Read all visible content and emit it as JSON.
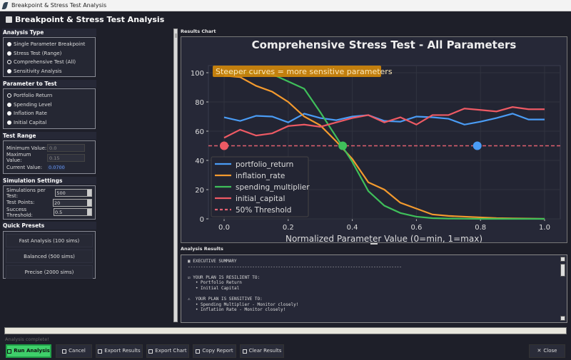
{
  "window": {
    "title": "Breakpoint & Stress Test Analysis"
  },
  "header": {
    "title": "Breakpoint & Stress Test Analysis"
  },
  "analysis_type": {
    "label": "Analysis Type",
    "options": [
      "Single Parameter Breakpoint",
      "Stress Test (Range)",
      "Comprehensive Test (All)",
      "Sensitivity Analysis"
    ],
    "selected": "Comprehensive Test (All)"
  },
  "parameter": {
    "label": "Parameter to Test",
    "options": [
      "Portfolio Return",
      "Spending Level",
      "Inflation Rate",
      "Initial Capital"
    ],
    "selected": "Portfolio Return"
  },
  "test_range": {
    "label": "Test Range",
    "min_label": "Minimum Value:",
    "min_value": "0.0",
    "max_label": "Maximum Value:",
    "max_value": "0.15",
    "current_label": "Current Value:",
    "current_value": "0.0700"
  },
  "simulation": {
    "label": "Simulation Settings",
    "sims_label": "Simulations per Test:",
    "sims_value": "500",
    "points_label": "Test Points:",
    "points_value": "20",
    "threshold_label": "Success Threshold:",
    "threshold_value": "0.5"
  },
  "presets": {
    "label": "Quick Presets",
    "items": [
      "Fast Analysis (100 sims)",
      "Balanced (500 sims)",
      "Precise (2000 sims)"
    ]
  },
  "chart_panel": {
    "label": "Results Chart"
  },
  "results_panel": {
    "label": "Analysis Results",
    "text": "▣ EXECUTIVE SUMMARY\n-----------------------------------------------------------------------------------\n\n☑ YOUR PLAN IS RESILIENT TO:\n   • Portfolio Return\n   • Initial Capital\n\n⚠  YOUR PLAN IS SENSITIVE TO:\n   • Spending Multiplier - Monitor closely!\n   • Inflation Rate - Monitor closely!"
  },
  "progress": {
    "value": 1.0
  },
  "status": "Analysis complete!",
  "buttons": {
    "run": "Run Analysis",
    "cancel": "Cancel",
    "export_results": "Export Results",
    "export_chart": "Export Chart",
    "copy_report": "Copy Report",
    "clear_results": "Clear Results",
    "close": "Close"
  },
  "colors": {
    "accent_green": "#3fcf6a",
    "background": "#1e1f29",
    "annotation": "#d4890a"
  },
  "chart_data": {
    "type": "line",
    "title": "Comprehensive Stress Test - All Parameters",
    "xlabel": "Normalized Parameter Value (0=min, 1=max)",
    "ylabel": "",
    "xlim": [
      0,
      1
    ],
    "ylim": [
      0,
      100
    ],
    "xticks": [
      "0.0",
      "0.2",
      "0.4",
      "0.6",
      "0.8",
      "1.0"
    ],
    "yticks": [
      "0",
      "20",
      "40",
      "60",
      "80",
      "100"
    ],
    "grid": true,
    "legend": "lower-left",
    "annotation": "Steeper curves = more sensitive parameters",
    "x": [
      0,
      0.05,
      0.1,
      0.15,
      0.2,
      0.25,
      0.3,
      0.35,
      0.4,
      0.45,
      0.5,
      0.55,
      0.6,
      0.65,
      0.7,
      0.75,
      0.8,
      0.85,
      0.9,
      0.95,
      1.0
    ],
    "series": [
      {
        "name": "portfolio_return",
        "color": "#4a9cf5",
        "values": [
          69.5,
          67,
          70.5,
          70,
          66,
          72,
          69,
          67.5,
          70,
          71,
          67,
          66.5,
          70,
          69.5,
          68.5,
          64.5,
          66.5,
          69,
          72,
          68,
          68
        ]
      },
      {
        "name": "inflation_rate",
        "color": "#f39a2e",
        "values": [
          98,
          97,
          91,
          87,
          80,
          70,
          64,
          53,
          41,
          25,
          20,
          11,
          7,
          3,
          2,
          1.5,
          1,
          0.5,
          0.3,
          0.2,
          0
        ]
      },
      {
        "name": "spending_multiplier",
        "color": "#3fbf5a",
        "values": [
          100,
          100,
          100,
          99,
          94,
          89,
          73,
          56,
          39,
          19,
          9,
          4,
          1.5,
          0.5,
          0.2,
          0.1,
          0,
          0,
          0,
          0,
          0
        ]
      },
      {
        "name": "initial_capital",
        "color": "#ee5a64",
        "values": [
          55.5,
          61,
          57,
          58.5,
          63.5,
          64.5,
          63,
          66,
          69,
          71,
          66,
          69.5,
          64.5,
          71,
          71,
          75.5,
          74.5,
          73.5,
          76.5,
          75,
          75
        ]
      }
    ],
    "threshold": {
      "name": "50% Threshold",
      "value": 50,
      "color": "#e06070"
    },
    "breakpoints": [
      {
        "x": 0.0,
        "y": 50,
        "color": "#ee5a64"
      },
      {
        "x": 0.37,
        "y": 50,
        "color": "#3fbf5a"
      },
      {
        "x": 0.79,
        "y": 50,
        "color": "#4a9cf5"
      }
    ]
  }
}
